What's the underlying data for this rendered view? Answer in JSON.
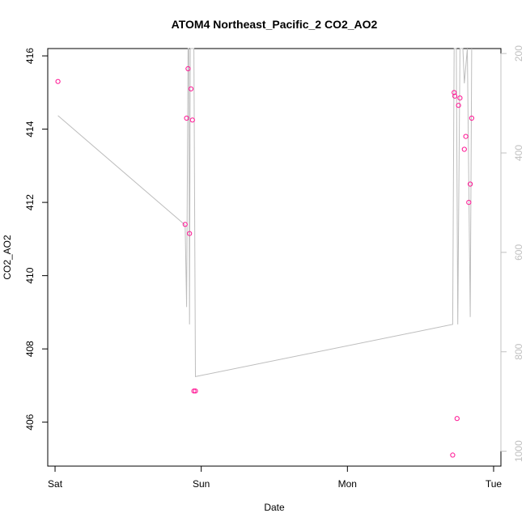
{
  "chart_data": {
    "type": "scatter",
    "title": "ATOM4 Northeast_Pacific_2 CO2_AO2",
    "xlabel": "Date",
    "ylabel": "CO2_AO2",
    "x_tick_labels": [
      "Sat",
      "Sun",
      "Mon",
      "Tue"
    ],
    "xlim_days": [
      -0.05,
      3.05
    ],
    "ylim": [
      404.8,
      416.2
    ],
    "y_ticks": [
      406,
      408,
      410,
      412,
      414,
      416
    ],
    "y2_ticks": [
      200,
      400,
      600,
      800,
      1000
    ],
    "y2lim_inverted": [
      190,
      1030
    ],
    "grid": false,
    "colors": {
      "points": "#ff1493",
      "line": "#bdbdbd",
      "axis": "#000000",
      "secondary_axis": "#c0c0c0"
    },
    "series": [
      {
        "type": "scatter",
        "x_days": [
          0.02,
          0.89,
          0.9,
          0.91,
          0.92,
          0.93,
          0.94,
          0.95,
          0.96,
          2.72,
          2.73,
          2.735,
          2.75,
          2.76,
          2.77,
          2.8,
          2.81,
          2.83,
          2.84,
          2.85
        ],
        "y": [
          415.3,
          411.4,
          414.3,
          415.65,
          411.15,
          415.1,
          414.25,
          406.85,
          406.85,
          405.1,
          415.0,
          414.9,
          406.1,
          414.65,
          414.85,
          413.45,
          413.8,
          412.0,
          412.5,
          414.3
        ]
      },
      {
        "type": "line",
        "axis": "secondary",
        "x_days": [
          0.02,
          0.89,
          0.9,
          0.91,
          0.915,
          0.92,
          0.925,
          0.93,
          0.935,
          0.95,
          0.96,
          2.72,
          2.73,
          2.745,
          2.755,
          2.77,
          2.78,
          2.79,
          2.8,
          2.82,
          2.84,
          2.85
        ],
        "y": [
          325,
          545,
          710,
          190,
          190,
          745,
          190,
          190,
          190,
          190,
          850,
          745,
          190,
          190,
          745,
          190,
          190,
          190,
          260,
          190,
          730,
          190
        ]
      }
    ]
  }
}
